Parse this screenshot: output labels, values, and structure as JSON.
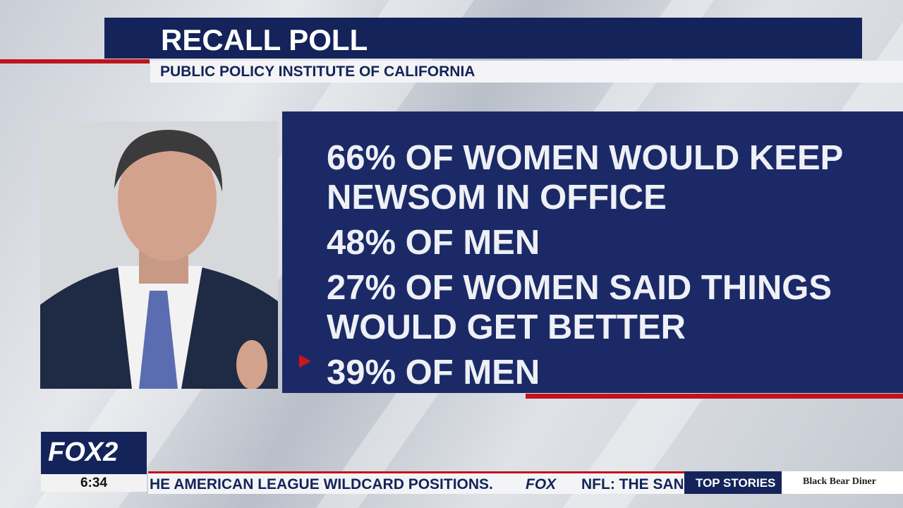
{
  "header": {
    "title": "RECALL POLL",
    "subtitle": "PUBLIC POLICY INSTITUTE OF CALIFORNIA"
  },
  "points": [
    "66% OF WOMEN WOULD KEEP NEWSOM IN OFFICE",
    "48% OF MEN",
    "27% OF WOMEN SAID THINGS WOULD GET BETTER",
    "39% OF MEN"
  ],
  "logo": {
    "name": "FOX2",
    "time": "6:34"
  },
  "ticker": {
    "headline": "HE AMERICAN LEAGUE WILDCARD POSITIONS.",
    "brand": "FOX",
    "next": "NFL: THE SAN",
    "section": "TOP STORIES",
    "sponsor": "Black Bear Diner"
  }
}
